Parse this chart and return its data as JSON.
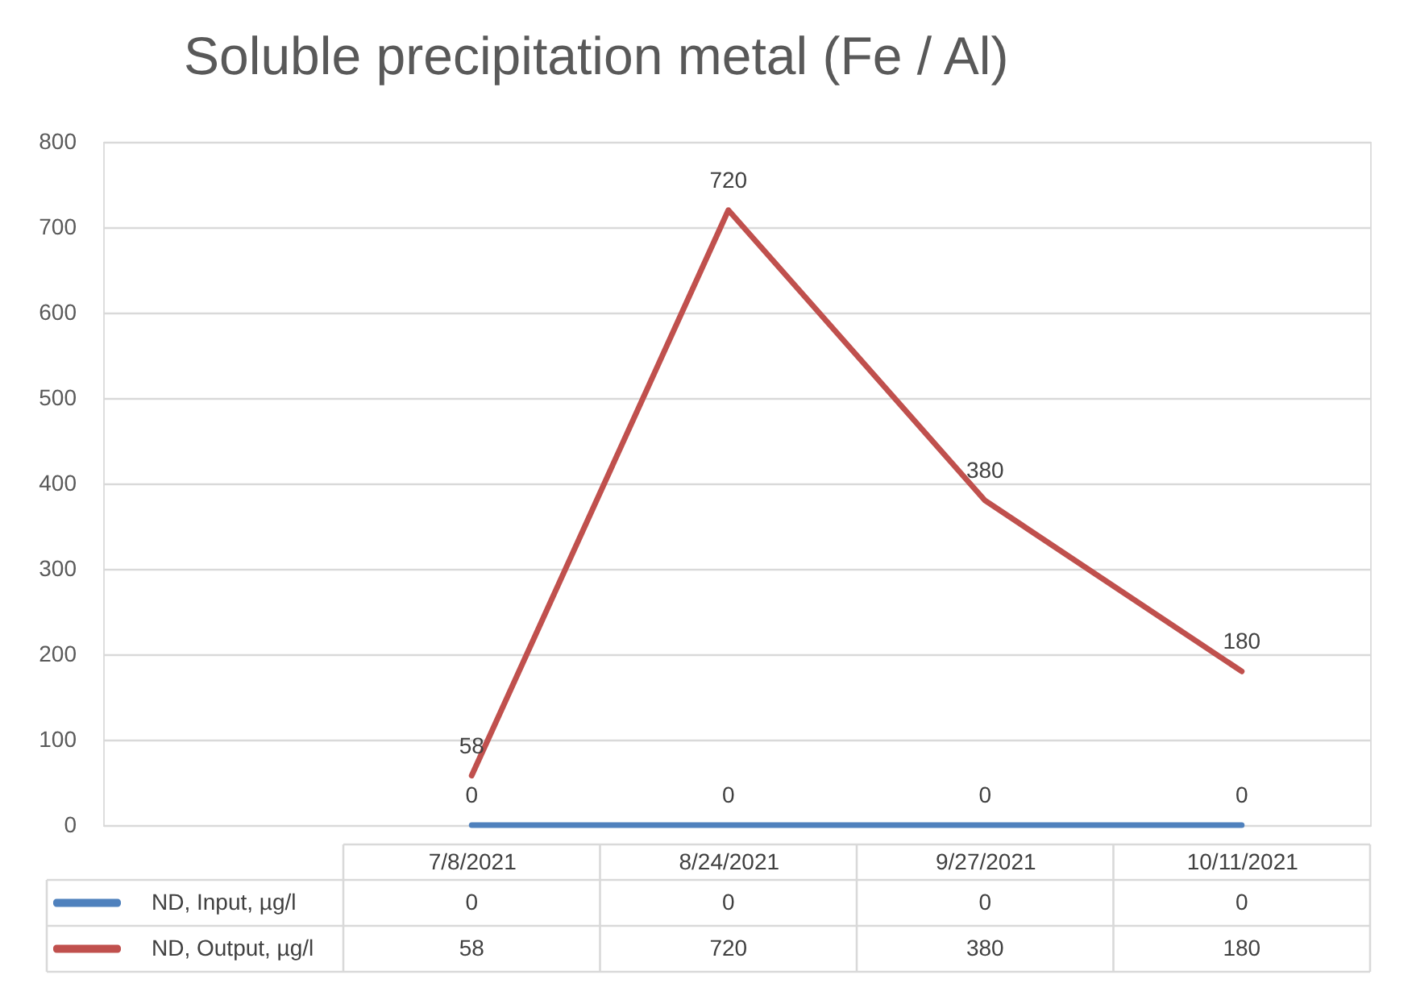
{
  "chart_data": {
    "type": "line",
    "title": "Soluble precipitation metal (Fe / Al)",
    "categories": [
      "7/8/2021",
      "8/24/2021",
      "9/27/2021",
      "10/11/2021"
    ],
    "series": [
      {
        "name": "ND, Input, µg/l",
        "color": "#4f81bd",
        "values": [
          0,
          0,
          0,
          0
        ]
      },
      {
        "name": "ND, Output, µg/l",
        "color": "#c0504d",
        "values": [
          58,
          720,
          380,
          180
        ]
      }
    ],
    "ylim": [
      0,
      800
    ],
    "yticks": [
      0,
      100,
      200,
      300,
      400,
      500,
      600,
      700,
      800
    ],
    "annotations": [
      {
        "text": "0",
        "x": "7/8/2021",
        "y": 0
      },
      {
        "text": "0",
        "x": "8/24/2021",
        "y": 0
      },
      {
        "text": "0",
        "x": "9/27/2021",
        "y": 0
      },
      {
        "text": "0",
        "x": "10/11/2021",
        "y": 0
      },
      {
        "text": "58",
        "x": "7/8/2021",
        "y": 58
      },
      {
        "text": "720",
        "x": "8/24/2021",
        "y": 720
      },
      {
        "text": "380",
        "x": "9/27/2021",
        "y": 380
      },
      {
        "text": "180",
        "x": "10/11/2021",
        "y": 180
      }
    ],
    "grid": "y",
    "legend": "bottom",
    "data_labels": true,
    "line_style": "solid"
  }
}
